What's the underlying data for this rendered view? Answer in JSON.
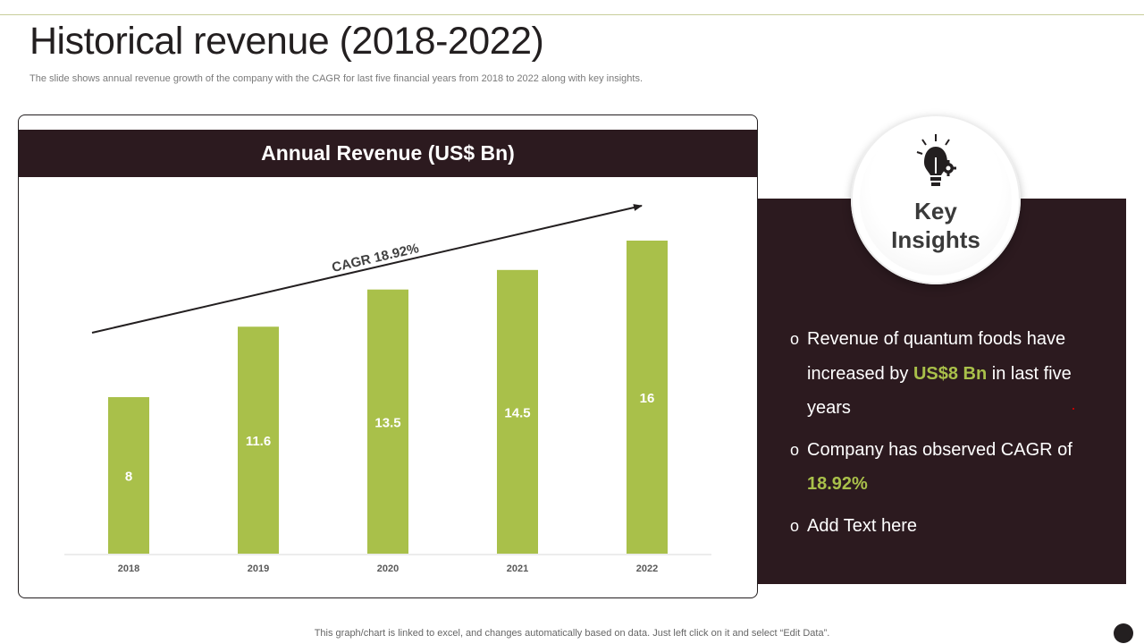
{
  "page": {
    "title": "Historical revenue (2018-2022)",
    "subtitle": "The slide shows annual revenue growth of the company with the CAGR for last five financial years from 2018 to 2022 along with key insights.",
    "footer_note": "This graph/chart is linked to excel, and changes automatically based on data. Just left click on it and select “Edit Data”."
  },
  "chart_data": {
    "type": "bar",
    "title": "Annual Revenue (US$ Bn)",
    "categories": [
      "2018",
      "2019",
      "2020",
      "2021",
      "2022"
    ],
    "values": [
      8,
      11.6,
      13.5,
      14.5,
      16
    ],
    "ylim": [
      0,
      16
    ],
    "xlabel": "",
    "ylabel": "",
    "annotation": "CAGR 18.92%",
    "bar_color": "#a9c04a"
  },
  "insights": {
    "title_line1": "Key",
    "title_line2": "Insights",
    "icon": "lightbulb-gear-icon",
    "bullet_marker": "o",
    "bullet1_a": "Revenue of quantum  foods have increased by ",
    "bullet1_hl": "US$8 Bn",
    "bullet1_b": " in last five years",
    "bullet2_a": "Company has observed CAGR of ",
    "bullet2_hl": "18.92%",
    "bullet3": "Add Text here"
  },
  "colors": {
    "dark": "#2c1a1f",
    "accent": "#a9c04a"
  }
}
